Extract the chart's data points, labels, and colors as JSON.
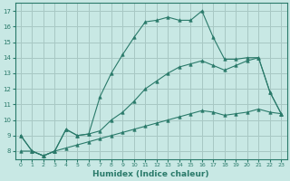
{
  "xlabel": "Humidex (Indice chaleur)",
  "background_color": "#c8e8e4",
  "grid_color": "#a8c8c4",
  "line_color": "#2a7a6a",
  "xlim": [
    -0.5,
    23.5
  ],
  "ylim": [
    7.5,
    17.5
  ],
  "xticks": [
    0,
    1,
    2,
    3,
    4,
    5,
    6,
    7,
    8,
    9,
    10,
    11,
    12,
    13,
    14,
    15,
    16,
    17,
    18,
    19,
    20,
    21,
    22,
    23
  ],
  "yticks": [
    8,
    9,
    10,
    11,
    12,
    13,
    14,
    15,
    16,
    17
  ],
  "line1_x": [
    0,
    1,
    2,
    3,
    4,
    5,
    6,
    7,
    8,
    9,
    10,
    11,
    12,
    13,
    14,
    15,
    16,
    17,
    18,
    19,
    20,
    21,
    22,
    23
  ],
  "line1_y": [
    9.0,
    8.0,
    7.7,
    8.0,
    9.4,
    9.0,
    9.1,
    11.5,
    13.0,
    14.2,
    15.3,
    16.3,
    16.4,
    16.6,
    16.4,
    16.4,
    17.0,
    15.3,
    13.9,
    13.9,
    14.0,
    14.0,
    11.8,
    10.4
  ],
  "line2_x": [
    0,
    1,
    2,
    3,
    4,
    5,
    6,
    7,
    8,
    9,
    10,
    11,
    12,
    13,
    14,
    15,
    16,
    17,
    18,
    19,
    20,
    21,
    22,
    23
  ],
  "line2_y": [
    9.0,
    8.0,
    7.7,
    8.0,
    9.4,
    9.0,
    9.1,
    9.3,
    10.0,
    10.5,
    11.2,
    12.0,
    12.5,
    13.0,
    13.4,
    13.6,
    13.8,
    13.5,
    13.2,
    13.5,
    13.8,
    14.0,
    11.8,
    10.4
  ],
  "line3_x": [
    0,
    1,
    2,
    3,
    4,
    5,
    6,
    7,
    8,
    9,
    10,
    11,
    12,
    13,
    14,
    15,
    16,
    17,
    18,
    19,
    20,
    21,
    22,
    23
  ],
  "line3_y": [
    8.0,
    8.0,
    7.7,
    8.0,
    8.2,
    8.4,
    8.6,
    8.8,
    9.0,
    9.2,
    9.4,
    9.6,
    9.8,
    10.0,
    10.2,
    10.4,
    10.6,
    10.5,
    10.3,
    10.4,
    10.5,
    10.7,
    10.5,
    10.4
  ]
}
